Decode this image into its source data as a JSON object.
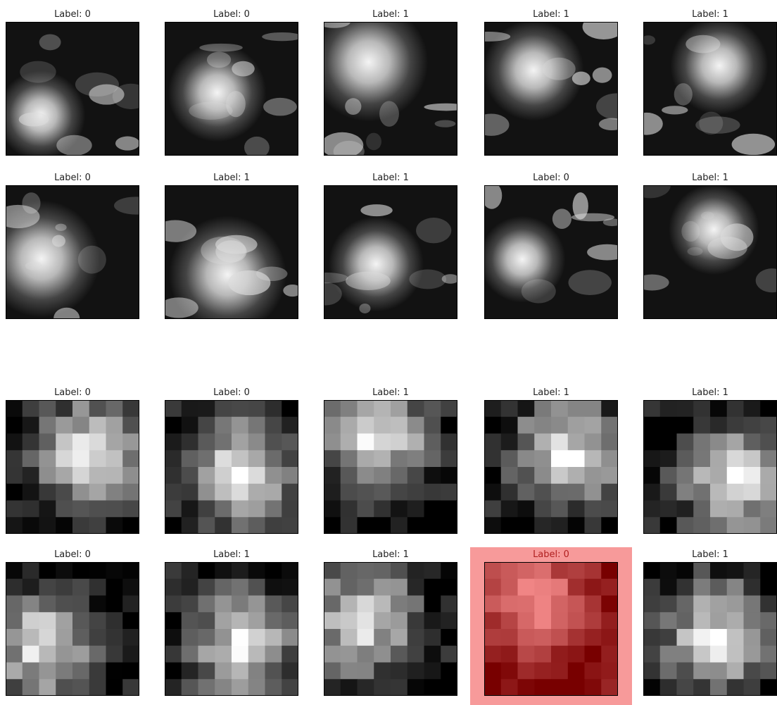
{
  "grids": [
    {
      "panels": [
        {
          "label": "Label: 0"
        },
        {
          "label": "Label: 0"
        },
        {
          "label": "Label: 1"
        },
        {
          "label": "Label: 1"
        },
        {
          "label": "Label: 1"
        },
        {
          "label": "Label: 0"
        },
        {
          "label": "Label: 1"
        },
        {
          "label": "Label: 1"
        },
        {
          "label": "Label: 0"
        },
        {
          "label": "Label: 1"
        }
      ]
    },
    {
      "panels": [
        {
          "label": "Label: 0"
        },
        {
          "label": "Label: 0"
        },
        {
          "label": "Label: 1"
        },
        {
          "label": "Label: 1"
        },
        {
          "label": "Label: 1"
        },
        {
          "label": "Label: 0"
        },
        {
          "label": "Label: 1"
        },
        {
          "label": "Label: 1"
        },
        {
          "label": "Label: 0"
        },
        {
          "label": "Label: 1"
        }
      ]
    }
  ]
}
